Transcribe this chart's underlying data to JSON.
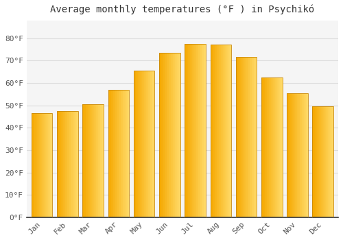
{
  "title": "Average monthly temperatures (°F ) in Psychikó",
  "months": [
    "Jan",
    "Feb",
    "Mar",
    "Apr",
    "May",
    "Jun",
    "Jul",
    "Aug",
    "Sep",
    "Oct",
    "Nov",
    "Dec"
  ],
  "values": [
    46.5,
    47.3,
    50.5,
    57.0,
    65.5,
    73.5,
    77.5,
    77.0,
    71.5,
    62.5,
    55.5,
    49.5
  ],
  "bar_color_left": "#F5A800",
  "bar_color_right": "#FFD966",
  "background_color": "#FFFFFF",
  "plot_bg_color": "#F5F5F5",
  "grid_color": "#DDDDDD",
  "ylim": [
    0,
    88
  ],
  "yticks": [
    0,
    10,
    20,
    30,
    40,
    50,
    60,
    70,
    80
  ],
  "ytick_labels": [
    "0°F",
    "10°F",
    "20°F",
    "30°F",
    "40°F",
    "50°F",
    "60°F",
    "70°F",
    "80°F"
  ],
  "title_fontsize": 10,
  "tick_fontsize": 8,
  "bar_width": 0.82,
  "n_gradient_steps": 20
}
